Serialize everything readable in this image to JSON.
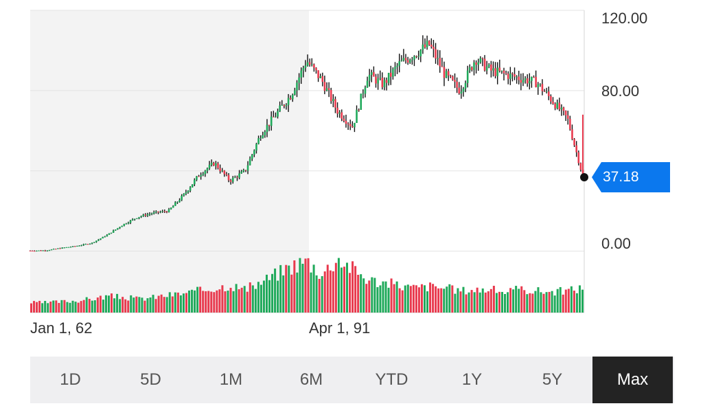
{
  "chart_data": {
    "type": "candlestick",
    "y_ticks": [
      "120.00",
      "80.00",
      "0.00"
    ],
    "x_ticks": [
      "Jan 1, 62",
      "Apr 1, 91"
    ],
    "ylim": [
      -0.5,
      120
    ],
    "last_price": "37.18",
    "colors": {
      "up": "#1fa95a",
      "down": "#e8394d",
      "wick": "#000000",
      "price_tag": "#0b78ee",
      "shade": "#f3f3f3",
      "grid": "#e3e3e3"
    },
    "price_series": {
      "x": [
        "1962",
        "1965",
        "1970",
        "1975",
        "1980",
        "1985",
        "1988",
        "1991",
        "1993",
        "1996",
        "1997",
        "1998",
        "2000",
        "2001",
        "2002",
        "2003",
        "2004",
        "2005",
        "2006",
        "2007",
        "2008",
        "2009",
        "2010",
        "2011",
        "2012",
        "2013",
        "2014",
        "2015",
        "2016",
        "2017",
        "2018",
        "2019",
        "2020",
        "2021",
        "2022",
        "2023",
        "2024"
      ],
      "y": [
        0.2,
        0.3,
        1.5,
        2.5,
        4.0,
        8.0,
        13.0,
        17.0,
        19.0,
        20.0,
        28.0,
        38.0,
        44.0,
        35.0,
        40.0,
        58.0,
        68.0,
        78.0,
        95.0,
        85.0,
        70.0,
        62.0,
        88.0,
        83.0,
        93.0,
        98.0,
        103.0,
        88.0,
        80.0,
        96.0,
        90.0,
        88.0,
        86.0,
        84.0,
        75.0,
        66.0,
        37.18
      ]
    },
    "volume_series": {
      "note_unit": "relative",
      "values": [
        0.18,
        0.18,
        0.2,
        0.22,
        0.25,
        0.3,
        0.28,
        0.25,
        0.28,
        0.32,
        0.35,
        0.4,
        0.45,
        0.5,
        0.42,
        0.55,
        0.7,
        0.85,
        0.95,
        0.7,
        1.0,
        0.8,
        0.6,
        0.55,
        0.5,
        0.45,
        0.48,
        0.45,
        0.4,
        0.42,
        0.42,
        0.38,
        0.42,
        0.4,
        0.38,
        0.4,
        0.45
      ]
    }
  },
  "range_buttons": [
    "1D",
    "5D",
    "1M",
    "6M",
    "YTD",
    "1Y",
    "5Y",
    "Max"
  ],
  "active_range": "Max"
}
